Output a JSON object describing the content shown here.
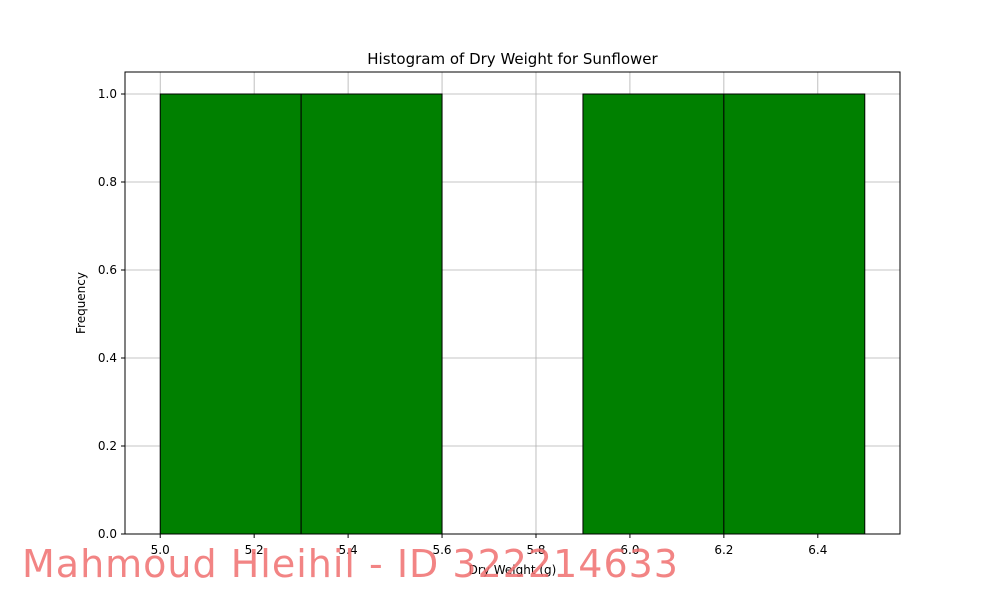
{
  "chart_data": {
    "type": "bar",
    "title": "Histogram of Dry Weight for Sunflower",
    "xlabel": "Dry Weight (g)",
    "ylabel": "Frequency",
    "xlim": [
      4.925,
      6.575
    ],
    "ylim": [
      0,
      1.05
    ],
    "xticks": [
      "5.0",
      "5.2",
      "5.4",
      "5.6",
      "5.8",
      "6.0",
      "6.2",
      "6.4"
    ],
    "yticks": [
      "0.0",
      "0.2",
      "0.4",
      "0.6",
      "0.8",
      "1.0"
    ],
    "bins": [
      {
        "start": 5.0,
        "end": 5.3,
        "count": 1
      },
      {
        "start": 5.3,
        "end": 5.6,
        "count": 1
      },
      {
        "start": 5.6,
        "end": 5.9,
        "count": 0
      },
      {
        "start": 5.9,
        "end": 6.2,
        "count": 1
      },
      {
        "start": 6.2,
        "end": 6.5,
        "count": 1
      }
    ],
    "bar_color": "#008000",
    "edge_color": "#000000",
    "grid": true
  },
  "watermark": "Mahmoud Hleihil - ID 322214633"
}
